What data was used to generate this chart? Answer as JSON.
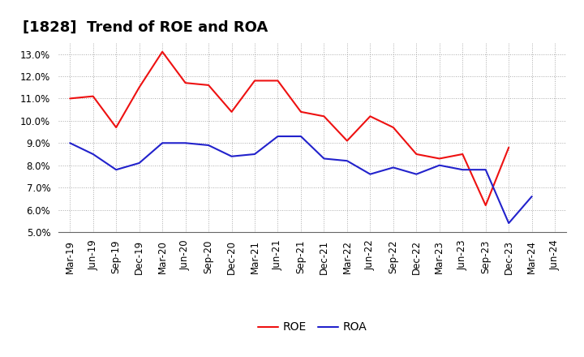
{
  "title": "[1828]  Trend of ROE and ROA",
  "x_labels": [
    "Mar-19",
    "Jun-19",
    "Sep-19",
    "Dec-19",
    "Mar-20",
    "Jun-20",
    "Sep-20",
    "Dec-20",
    "Mar-21",
    "Jun-21",
    "Sep-21",
    "Dec-21",
    "Mar-22",
    "Jun-22",
    "Sep-22",
    "Dec-22",
    "Mar-23",
    "Jun-23",
    "Sep-23",
    "Dec-23",
    "Mar-24",
    "Jun-24"
  ],
  "roe": [
    11.0,
    11.1,
    9.7,
    11.5,
    13.1,
    11.7,
    11.6,
    10.4,
    11.8,
    11.8,
    10.4,
    10.2,
    9.1,
    10.2,
    9.7,
    8.5,
    8.3,
    8.5,
    6.2,
    8.8,
    null,
    null
  ],
  "roa": [
    9.0,
    8.5,
    7.8,
    8.1,
    9.0,
    9.0,
    8.9,
    8.4,
    8.5,
    9.3,
    9.3,
    8.3,
    8.2,
    7.6,
    7.9,
    7.6,
    8.0,
    7.8,
    7.8,
    5.4,
    6.6,
    null
  ],
  "roe_color": "#ee1111",
  "roa_color": "#2222cc",
  "bg_color": "#ffffff",
  "plot_bg_color": "#ffffff",
  "grid_color": "#aaaaaa",
  "ylim": [
    5.0,
    13.5
  ],
  "yticks": [
    5.0,
    6.0,
    7.0,
    8.0,
    9.0,
    10.0,
    11.0,
    12.0,
    13.0
  ],
  "title_fontsize": 13,
  "legend_fontsize": 10,
  "tick_fontsize": 8.5
}
